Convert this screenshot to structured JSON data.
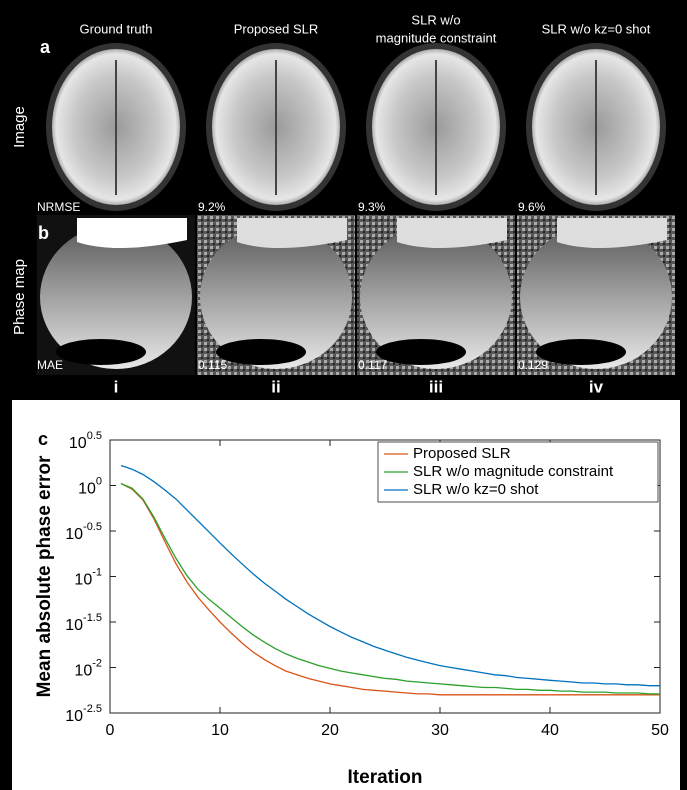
{
  "panel_a": {
    "label": "a",
    "row_label": "Image",
    "header_lines": [
      [
        "Ground truth"
      ],
      [
        "Proposed SLR"
      ],
      [
        "SLR w/o",
        "magnitude constraint"
      ],
      [
        "SLR w/o kz=0 shot"
      ]
    ],
    "metric": "NRMSE",
    "metric_values": [
      "9.2%",
      "9.3%",
      "9.6%"
    ]
  },
  "panel_b": {
    "label": "b",
    "row_label": "Phase map",
    "metric": "MAE",
    "metric_values": [
      "0.115",
      "0.117",
      "0.129"
    ],
    "column_labels": [
      "i",
      "ii",
      "iii",
      "iv"
    ]
  },
  "chart_data": {
    "type": "line",
    "label": "c",
    "xlabel": "Iteration",
    "ylabel": "Mean absolute phase error",
    "x": [
      1,
      2,
      3,
      4,
      5,
      6,
      7,
      8,
      9,
      10,
      11,
      12,
      13,
      14,
      15,
      16,
      17,
      18,
      19,
      20,
      21,
      22,
      23,
      24,
      25,
      26,
      27,
      28,
      29,
      30,
      31,
      32,
      33,
      34,
      35,
      36,
      37,
      38,
      39,
      40,
      41,
      42,
      43,
      44,
      45,
      46,
      47,
      48,
      49,
      50
    ],
    "xlim": [
      0,
      50
    ],
    "xticks": [
      0,
      10,
      20,
      30,
      40,
      50
    ],
    "ylim": [
      0.003162,
      3.162
    ],
    "log_y": true,
    "grid": false,
    "legend": "upper right",
    "yticks": [
      {
        "value": 3.162,
        "label": "10",
        "exponent": "0.5"
      },
      {
        "value": 1,
        "label": "10",
        "exponent": "0"
      },
      {
        "value": 0.3162,
        "label": "10",
        "exponent": "-0.5"
      },
      {
        "value": 0.1,
        "label": "10",
        "exponent": "-1"
      },
      {
        "value": 0.03162,
        "label": "10",
        "exponent": "-1.5"
      },
      {
        "value": 0.01,
        "label": "10",
        "exponent": "-2"
      },
      {
        "value": 0.003162,
        "label": "10",
        "exponent": "-2.5"
      }
    ],
    "series": [
      {
        "name": "Proposed SLR",
        "color": "#d95319",
        "values": [
          1.05,
          0.912,
          0.692,
          0.427,
          0.24,
          0.138,
          0.0871,
          0.0589,
          0.0427,
          0.0316,
          0.024,
          0.0186,
          0.0148,
          0.0123,
          0.0105,
          0.00912,
          0.00832,
          0.00759,
          0.00708,
          0.00661,
          0.00631,
          0.00603,
          0.00575,
          0.00562,
          0.0055,
          0.00537,
          0.00525,
          0.00513,
          0.00513,
          0.00501,
          0.00501,
          0.00501,
          0.00501,
          0.00501,
          0.00501,
          0.00501,
          0.00501,
          0.00501,
          0.00501,
          0.00501,
          0.00501,
          0.00501,
          0.00501,
          0.00501,
          0.00501,
          0.00501,
          0.00501,
          0.00501,
          0.00501,
          0.00501
        ]
      },
      {
        "name": "SLR w/o magnitude constraint",
        "color": "#2ca02c",
        "values": [
          1.05,
          0.933,
          0.708,
          0.447,
          0.263,
          0.158,
          0.102,
          0.0724,
          0.0562,
          0.0447,
          0.0355,
          0.0282,
          0.0229,
          0.0191,
          0.0162,
          0.0141,
          0.0126,
          0.0115,
          0.0105,
          0.00977,
          0.00912,
          0.00871,
          0.00832,
          0.00794,
          0.00759,
          0.00741,
          0.00708,
          0.00692,
          0.00676,
          0.00661,
          0.00646,
          0.00631,
          0.00617,
          0.00603,
          0.00603,
          0.00589,
          0.00575,
          0.00575,
          0.00562,
          0.00562,
          0.0055,
          0.0055,
          0.00537,
          0.00537,
          0.00537,
          0.00525,
          0.00525,
          0.00525,
          0.00513,
          0.00513
        ]
      },
      {
        "name": "SLR w/o kz=0 shot",
        "color": "#0072bd",
        "values": [
          1.66,
          1.51,
          1.32,
          1.1,
          0.891,
          0.708,
          0.537,
          0.407,
          0.309,
          0.234,
          0.178,
          0.138,
          0.107,
          0.0851,
          0.0692,
          0.0562,
          0.0468,
          0.0389,
          0.0331,
          0.0282,
          0.0245,
          0.0214,
          0.0191,
          0.017,
          0.0155,
          0.0141,
          0.0129,
          0.012,
          0.0112,
          0.0105,
          0.01,
          0.00955,
          0.00912,
          0.00871,
          0.00832,
          0.00813,
          0.00776,
          0.00759,
          0.00741,
          0.00724,
          0.00708,
          0.00692,
          0.00676,
          0.00676,
          0.00661,
          0.00661,
          0.00646,
          0.00646,
          0.00631,
          0.00631
        ]
      }
    ]
  }
}
